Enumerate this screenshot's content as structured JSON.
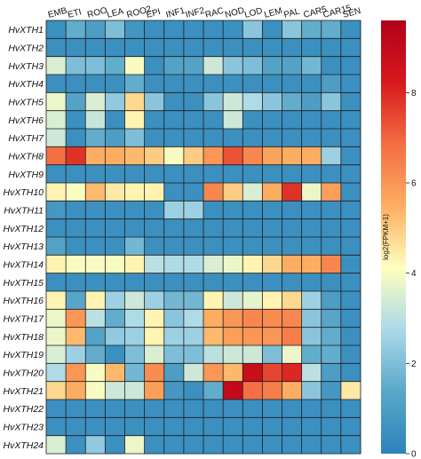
{
  "chart_data": {
    "type": "heatmap",
    "columns": [
      "EMB",
      "ETI",
      "ROO",
      "LEA",
      "ROO2",
      "EPI",
      "INF1",
      "INF2",
      "RAC",
      "NOD",
      "LOD",
      "LEM",
      "PAL",
      "CAR5",
      "CAR15",
      "SEN"
    ],
    "rows": [
      "HvXTH1",
      "HvXTH2",
      "HvXTH3",
      "HvXTH4",
      "HvXTH5",
      "HvXTH6",
      "HvXTH7",
      "HvXTH8",
      "HvXTH9",
      "HvXTH10",
      "HvXTH11",
      "HvXTH12",
      "HvXTH13",
      "HvXTH14",
      "HvXTH15",
      "HvXTH16",
      "HvXTH17",
      "HvXTH18",
      "HvXTH19",
      "HvXTH20",
      "HvXTH21",
      "HvXTH22",
      "HvXTH23",
      "HvXTH24"
    ],
    "values": [
      [
        0.5,
        1.5,
        1.0,
        2.0,
        0.7,
        0.5,
        0.5,
        0.5,
        0.5,
        0.5,
        2.2,
        0.5,
        2.2,
        1.5,
        1.5,
        0.5
      ],
      [
        0.5,
        0.5,
        0.5,
        0.5,
        0.5,
        0.5,
        0.5,
        0.5,
        0.5,
        0.5,
        0.5,
        0.5,
        0.5,
        0.5,
        0.5,
        0.5
      ],
      [
        3.5,
        2.0,
        2.0,
        1.5,
        4.0,
        0.5,
        1.2,
        1.2,
        3.3,
        2.2,
        2.0,
        1.2,
        1.2,
        1.8,
        0.5,
        0.5
      ],
      [
        0.5,
        0.5,
        0.5,
        0.5,
        1.5,
        0.5,
        0.5,
        0.5,
        0.5,
        0.5,
        0.5,
        0.5,
        0.5,
        0.5,
        1.0,
        0.5
      ],
      [
        3.8,
        1.2,
        3.5,
        2.3,
        4.8,
        2.2,
        0.5,
        0.5,
        2.2,
        3.3,
        2.8,
        2.2,
        1.5,
        1.0,
        2.2,
        0.5
      ],
      [
        3.5,
        0.5,
        3.2,
        0.5,
        4.3,
        0.5,
        0.5,
        0.5,
        0.5,
        3.3,
        0.5,
        0.5,
        0.5,
        0.5,
        0.5,
        0.5
      ],
      [
        3.3,
        0.5,
        1.5,
        1.0,
        2.0,
        0.5,
        0.5,
        0.5,
        0.5,
        0.5,
        0.5,
        0.5,
        0.5,
        0.5,
        0.5,
        0.5
      ],
      [
        6.8,
        7.8,
        5.5,
        5.5,
        5.3,
        5.0,
        4.0,
        5.0,
        6.0,
        7.3,
        6.3,
        5.7,
        5.5,
        5.5,
        2.5,
        0.5
      ],
      [
        0.5,
        0.5,
        0.5,
        0.5,
        0.5,
        0.5,
        0.5,
        0.5,
        0.5,
        0.5,
        0.5,
        0.5,
        0.5,
        0.5,
        0.5,
        0.5
      ],
      [
        4.3,
        4.0,
        5.3,
        4.5,
        4.3,
        4.3,
        0.5,
        0.5,
        6.3,
        5.0,
        3.5,
        5.5,
        7.8,
        3.8,
        5.8,
        0.5
      ],
      [
        0.8,
        0.5,
        0.5,
        0.5,
        0.5,
        0.5,
        2.5,
        2.5,
        0.5,
        0.5,
        0.5,
        0.5,
        0.5,
        0.5,
        0.5,
        0.5
      ],
      [
        0.5,
        0.5,
        0.5,
        0.5,
        0.5,
        0.5,
        0.5,
        0.5,
        0.5,
        0.5,
        0.5,
        0.5,
        0.5,
        0.5,
        0.5,
        0.5
      ],
      [
        1.2,
        0.5,
        0.5,
        0.5,
        1.8,
        0.5,
        0.5,
        0.5,
        0.5,
        0.5,
        0.5,
        0.5,
        0.5,
        0.5,
        0.5,
        0.5
      ],
      [
        4.3,
        4.0,
        4.0,
        4.0,
        4.3,
        3.0,
        2.8,
        2.8,
        3.5,
        3.8,
        4.3,
        4.8,
        5.5,
        5.5,
        6.3,
        0.5
      ],
      [
        0.5,
        0.5,
        0.5,
        0.5,
        0.5,
        0.5,
        0.5,
        0.5,
        0.5,
        0.5,
        0.5,
        0.5,
        0.5,
        0.5,
        0.5,
        0.5
      ],
      [
        4.3,
        1.3,
        4.3,
        2.5,
        3.3,
        2.5,
        1.8,
        1.8,
        4.3,
        3.3,
        3.7,
        4.3,
        4.8,
        2.5,
        1.0,
        0.5
      ],
      [
        3.8,
        6.0,
        3.0,
        1.5,
        2.8,
        4.3,
        2.2,
        2.8,
        5.5,
        6.0,
        6.3,
        6.2,
        6.3,
        2.2,
        1.3,
        0.5
      ],
      [
        3.8,
        5.3,
        1.2,
        2.3,
        2.5,
        4.3,
        2.5,
        2.5,
        5.3,
        5.8,
        6.0,
        6.0,
        6.5,
        2.2,
        1.5,
        0.5
      ],
      [
        3.5,
        2.5,
        1.5,
        0.5,
        2.0,
        3.5,
        2.0,
        2.0,
        3.0,
        3.3,
        3.3,
        2.0,
        3.8,
        1.5,
        1.5,
        0.5
      ],
      [
        2.8,
        6.0,
        4.0,
        5.3,
        1.8,
        6.2,
        1.0,
        3.3,
        6.0,
        5.3,
        8.8,
        7.5,
        8.0,
        3.0,
        1.0,
        0.5
      ],
      [
        4.8,
        5.5,
        4.0,
        3.3,
        3.3,
        5.8,
        0.8,
        0.5,
        1.5,
        9.0,
        6.8,
        6.5,
        5.5,
        2.2,
        0.8,
        4.5
      ],
      [
        0.5,
        0.5,
        0.5,
        0.5,
        0.5,
        0.5,
        0.5,
        0.5,
        0.5,
        0.5,
        0.5,
        0.5,
        0.5,
        0.5,
        0.5,
        0.5
      ],
      [
        0.5,
        0.5,
        0.5,
        0.5,
        0.5,
        0.5,
        0.5,
        0.5,
        0.5,
        0.5,
        0.5,
        0.5,
        0.5,
        0.5,
        0.5,
        0.5
      ],
      [
        3.5,
        0.5,
        2.3,
        0.5,
        3.8,
        0.5,
        0.5,
        0.5,
        0.5,
        0.5,
        0.5,
        0.5,
        0.5,
        0.5,
        0.5,
        0.5
      ]
    ],
    "colorbar": {
      "label": "log2(FPKM+1)",
      "min": 0,
      "max": 9.6,
      "ticks": [
        0,
        2,
        4,
        6,
        8
      ]
    },
    "colors": {
      "stops": [
        "#2b83ba",
        "#5aa7c9",
        "#abd9e9",
        "#ffffbf",
        "#fdae61",
        "#f46d43",
        "#d7191c",
        "#b0001a"
      ],
      "gridline": "#1a1a1a"
    }
  }
}
